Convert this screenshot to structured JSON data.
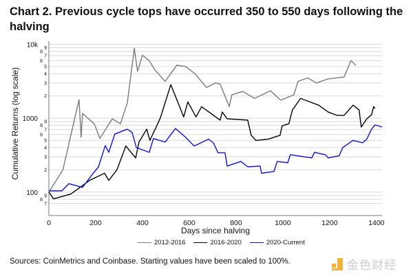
{
  "title": "Chart 2. Previous cycle tops have occurred 350 to 550 days following the halving",
  "source": "Sources: CoinMetrics and Coinbase. Starting values have been scaled to 100%.",
  "watermark": "金色财经",
  "chart_data": {
    "type": "line",
    "title": "Chart 2. Previous cycle tops have occurred 350 to 550 days following the halving",
    "xlabel": "Days since halving",
    "ylabel": "Cumulative Returns (log scale)",
    "xlim": [
      0,
      1424
    ],
    "ylim": [
      65,
      11000
    ],
    "yscale": "log",
    "grid": "horizontal",
    "legend": "bottom",
    "xticks": [
      0,
      200,
      400,
      600,
      800,
      1000,
      1200,
      1400
    ],
    "xtick_labels": [
      "0",
      "200",
      "400",
      "600",
      "800",
      "1000",
      "1200",
      "1400"
    ],
    "ytick_labels": {
      "100": "100",
      "1000": "1000",
      "10000": "10k"
    },
    "series": [
      {
        "name": "2012-2016",
        "color": "#7a7a7a",
        "x": [
          0,
          60,
          129,
          138,
          144,
          194,
          218,
          271,
          306,
          335,
          365,
          379,
          400,
          429,
          453,
          497,
          547,
          585,
          624,
          674,
          712,
          732,
          771,
          782,
          829,
          879,
          947,
          991,
          1047,
          1065,
          1106,
          1144,
          1194,
          1262,
          1291,
          1312
        ],
        "y": [
          100,
          200,
          1780,
          550,
          1160,
          840,
          530,
          980,
          840,
          1600,
          8800,
          4300,
          7100,
          6000,
          4500,
          3150,
          5200,
          5000,
          4000,
          2600,
          3000,
          2900,
          1430,
          2070,
          2300,
          1850,
          2350,
          1750,
          2070,
          3150,
          3500,
          3000,
          3400,
          3600,
          6000,
          5200
        ]
      },
      {
        "name": "2016-2020",
        "color": "#000000",
        "x": [
          0,
          20,
          94,
          174,
          238,
          256,
          291,
          329,
          371,
          385,
          418,
          432,
          476,
          521,
          541,
          576,
          594,
          629,
          653,
          732,
          741,
          762,
          850,
          865,
          885,
          938,
          988,
          997,
          1026,
          1041,
          1076,
          1115,
          1153,
          1194,
          1232,
          1262,
          1300,
          1326,
          1335,
          1359,
          1379,
          1388,
          1394
        ],
        "y": [
          100,
          81,
          94,
          144,
          180,
          144,
          200,
          420,
          290,
          475,
          710,
          500,
          1000,
          2830,
          1980,
          1040,
          1660,
          1040,
          1430,
          940,
          1210,
          980,
          940,
          585,
          500,
          520,
          585,
          790,
          840,
          1290,
          1850,
          1660,
          1500,
          1210,
          1090,
          1090,
          1500,
          1290,
          760,
          980,
          1110,
          1430,
          1350
        ]
      },
      {
        "name": "2020-Current",
        "color": "#1010d0",
        "x": [
          0,
          56,
          85,
          144,
          179,
          212,
          241,
          256,
          282,
          335,
          356,
          374,
          429,
          447,
          497,
          541,
          585,
          621,
          682,
          703,
          723,
          753,
          762,
          821,
          850,
          903,
          909,
          962,
          976,
          1021,
          1032,
          1124,
          1135,
          1182,
          1194,
          1241,
          1256,
          1300,
          1341,
          1359,
          1379,
          1394,
          1424
        ],
        "y": [
          104,
          104,
          130,
          116,
          163,
          220,
          425,
          345,
          610,
          710,
          640,
          400,
          345,
          530,
          475,
          725,
          550,
          420,
          520,
          465,
          340,
          340,
          225,
          260,
          220,
          225,
          180,
          190,
          260,
          250,
          320,
          290,
          345,
          320,
          290,
          310,
          400,
          500,
          465,
          520,
          710,
          810,
          760
        ]
      }
    ]
  }
}
